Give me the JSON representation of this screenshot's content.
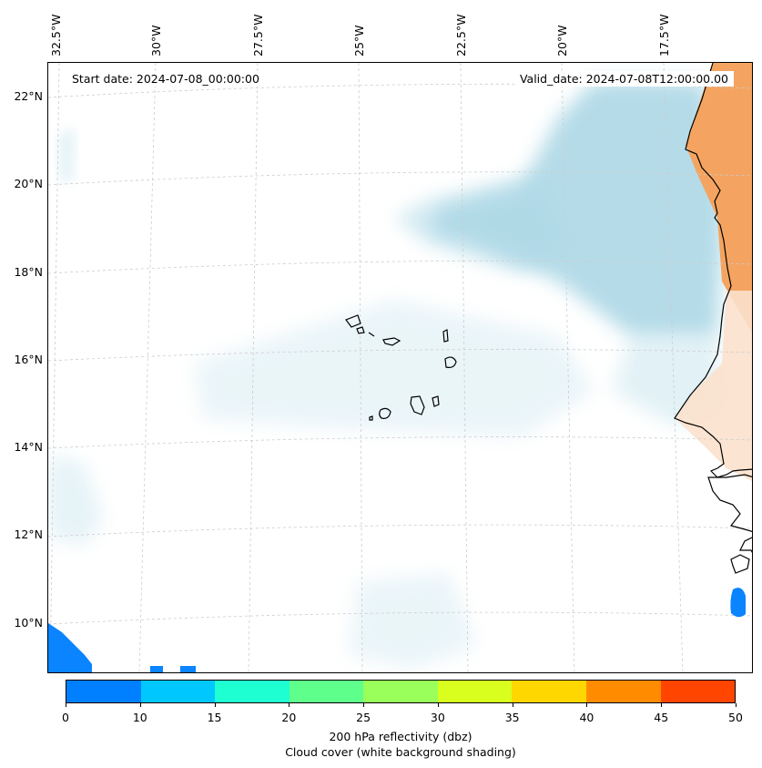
{
  "map": {
    "longitude_labels": [
      "32.5°W",
      "30°W",
      "27.5°W",
      "25°W",
      "22.5°W",
      "20°W",
      "17.5°W"
    ],
    "latitude_labels": [
      "22°N",
      "20°N",
      "18°N",
      "16°N",
      "14°N",
      "12°N",
      "10°N"
    ],
    "start_date": "Start date: 2024-07-08_00:00:00",
    "valid_date": "Valid_date: 2024-07-08T12:00:00.00",
    "cloud_color": "#add8e6",
    "land_dust_color": "#f4a460",
    "reflectivity_patch_color": "#0a84ff"
  },
  "colorbar": {
    "colors": [
      "#0080ff",
      "#00c8ff",
      "#1effd2",
      "#5fff8c",
      "#9aff5a",
      "#d8ff1e",
      "#ffd700",
      "#ff8c00",
      "#ff4500"
    ],
    "tick_labels": [
      "0",
      "10",
      "15",
      "20",
      "25",
      "30",
      "35",
      "40",
      "45",
      "50"
    ],
    "label_line1": "200 hPa reflectivity (dbz)",
    "label_line2": "Cloud cover (white background shading)"
  }
}
